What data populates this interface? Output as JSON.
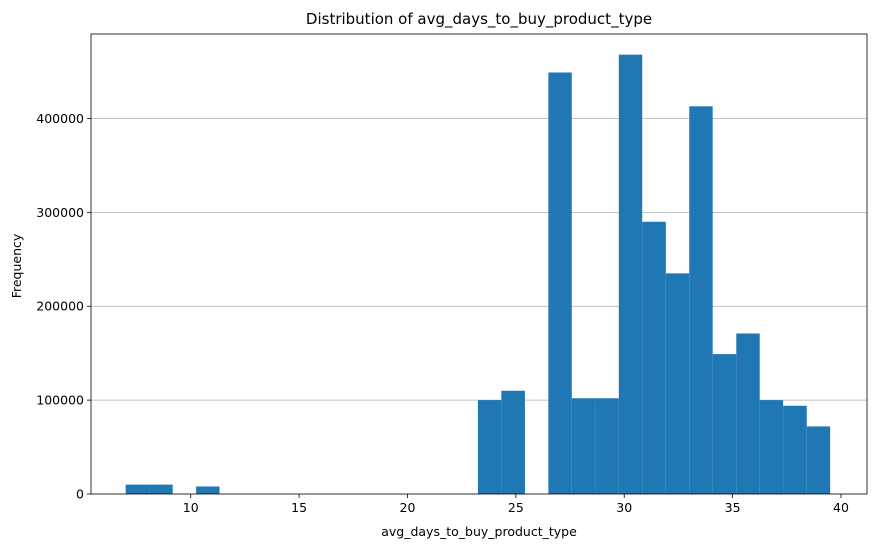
{
  "chart_data": {
    "type": "bar",
    "title": "Distribution of avg_days_to_buy_product_type",
    "xlabel": "avg_days_to_buy_product_type",
    "ylabel": "Frequency",
    "xlim": [
      5.4,
      41.2
    ],
    "ylim": [
      0,
      490000
    ],
    "xticks": [
      10,
      15,
      20,
      25,
      30,
      35,
      40
    ],
    "yticks": [
      0,
      100000,
      200000,
      300000,
      400000
    ],
    "grid": "horizontal",
    "color": "#1f77b4",
    "bins": [
      {
        "x0": 7.0,
        "x1": 8.08,
        "count": 10000
      },
      {
        "x0": 8.08,
        "x1": 9.17,
        "count": 10000
      },
      {
        "x0": 10.25,
        "x1": 11.33,
        "count": 8000
      },
      {
        "x0": 23.25,
        "x1": 24.33,
        "count": 100000
      },
      {
        "x0": 24.33,
        "x1": 25.42,
        "count": 110000
      },
      {
        "x0": 26.5,
        "x1": 27.58,
        "count": 449000
      },
      {
        "x0": 27.58,
        "x1": 28.67,
        "count": 102000
      },
      {
        "x0": 28.67,
        "x1": 29.75,
        "count": 102000
      },
      {
        "x0": 29.75,
        "x1": 30.83,
        "count": 468000
      },
      {
        "x0": 30.83,
        "x1": 31.92,
        "count": 290000
      },
      {
        "x0": 31.92,
        "x1": 33.0,
        "count": 235000
      },
      {
        "x0": 33.0,
        "x1": 34.08,
        "count": 413000
      },
      {
        "x0": 34.08,
        "x1": 35.17,
        "count": 149000
      },
      {
        "x0": 35.17,
        "x1": 36.25,
        "count": 171000
      },
      {
        "x0": 36.25,
        "x1": 37.33,
        "count": 100000
      },
      {
        "x0": 37.33,
        "x1": 38.42,
        "count": 94000
      },
      {
        "x0": 38.42,
        "x1": 39.5,
        "count": 72000
      }
    ]
  }
}
